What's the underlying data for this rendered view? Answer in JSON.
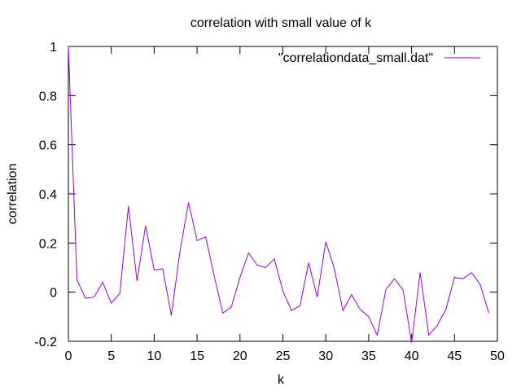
{
  "chart_data": {
    "type": "line",
    "title": "correlation with small value of k",
    "xlabel": "k",
    "ylabel": "correlation",
    "xlim": [
      0,
      50
    ],
    "ylim": [
      -0.2,
      1
    ],
    "xticks": [
      0,
      5,
      10,
      15,
      20,
      25,
      30,
      35,
      40,
      45,
      50
    ],
    "yticks": [
      -0.2,
      0,
      0.2,
      0.4,
      0.6,
      0.8,
      1
    ],
    "xtick_labels": [
      "0",
      "5",
      "10",
      "15",
      "20",
      "25",
      "30",
      "35",
      "40",
      "45",
      "50"
    ],
    "ytick_labels": [
      "-0.2",
      "0",
      "0.2",
      "0.4",
      "0.6",
      "0.8",
      "1"
    ],
    "grid": false,
    "legend_position": "top-right",
    "series": [
      {
        "name": "\"correlationdata_small.dat\"",
        "color": "#9400d3",
        "x": [
          0,
          1,
          2,
          3,
          4,
          5,
          6,
          7,
          8,
          9,
          10,
          11,
          12,
          13,
          14,
          15,
          16,
          17,
          18,
          19,
          20,
          21,
          22,
          23,
          24,
          25,
          26,
          27,
          28,
          29,
          30,
          31,
          32,
          33,
          34,
          35,
          36,
          37,
          38,
          39,
          40,
          41,
          42,
          43,
          44,
          45,
          46,
          47,
          48,
          49
        ],
        "y": [
          1.0,
          0.05,
          -0.025,
          -0.02,
          0.04,
          -0.045,
          -0.005,
          0.35,
          0.045,
          0.27,
          0.09,
          0.095,
          -0.095,
          0.165,
          0.365,
          0.21,
          0.225,
          0.065,
          -0.085,
          -0.06,
          0.06,
          0.16,
          0.11,
          0.1,
          0.135,
          0.005,
          -0.075,
          -0.055,
          0.12,
          -0.02,
          0.205,
          0.095,
          -0.075,
          -0.01,
          -0.07,
          -0.1,
          -0.175,
          0.01,
          0.055,
          0.01,
          -0.205,
          0.08,
          -0.175,
          -0.135,
          -0.07,
          0.06,
          0.055,
          0.08,
          0.03,
          -0.085
        ]
      }
    ]
  }
}
